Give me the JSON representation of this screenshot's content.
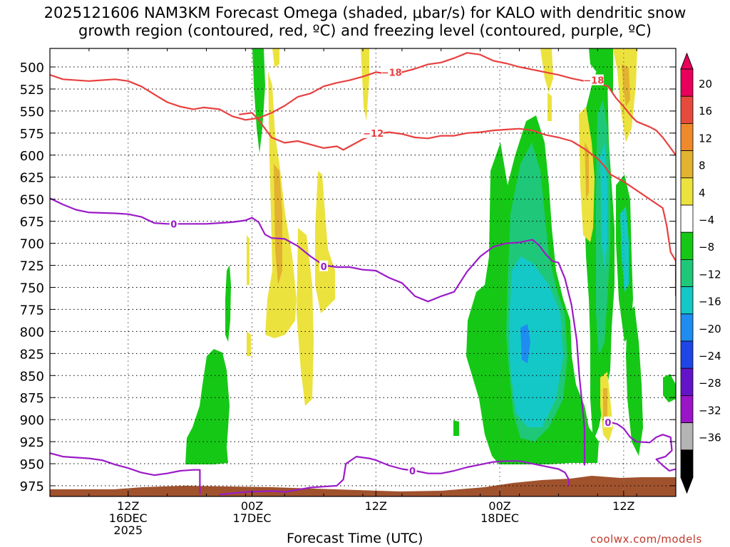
{
  "chart_data": {
    "type": "heatmap",
    "title_line1": "2025121606 NAM3KM Forecast Omega (shaded, μbar/s) for KALO with dendritic snow",
    "title_line2": "growth region (contoured, red, ºC) and freezing level (contoured, purple, ºC)",
    "xlabel": "Forecast Time (UTC)",
    "credit": "coolwx.com/models",
    "y_axis": {
      "pressure_hpa": [
        500,
        525,
        550,
        575,
        600,
        625,
        650,
        675,
        700,
        725,
        750,
        775,
        800,
        825,
        850,
        875,
        900,
        925,
        950,
        975
      ],
      "labels": [
        "500",
        "525",
        "550",
        "575",
        "600",
        "625",
        "650",
        "675",
        "700",
        "725",
        "750",
        "775",
        "800",
        "825",
        "850",
        "875",
        "900",
        "925",
        "950",
        "975"
      ],
      "range": [
        482,
        985
      ],
      "inverted": true
    },
    "x_axis": {
      "range_hours": [
        6,
        54
      ],
      "ticks": [
        {
          "hour": 12,
          "line1": "12Z",
          "line2": "16DEC",
          "line3": "2025"
        },
        {
          "hour": 21.5,
          "line1": "00Z",
          "line2": "17DEC",
          "line3": ""
        },
        {
          "hour": 31,
          "line1": "12Z",
          "line2": "",
          "line3": ""
        },
        {
          "hour": 40.5,
          "line1": "00Z",
          "line2": "18DEC",
          "line3": ""
        },
        {
          "hour": 50,
          "line1": "12Z",
          "line2": "",
          "line3": ""
        }
      ]
    },
    "colorbar": {
      "labels": [
        "20",
        "16",
        "12",
        "8",
        "4",
        "−4",
        "−8",
        "−12",
        "−16",
        "−20",
        "−24",
        "−28",
        "−32",
        "−36"
      ],
      "colors": [
        "#e8005a",
        "#e64a3c",
        "#ef8a2c",
        "#e2b230",
        "#ece23e",
        "#ffffff",
        "#16c816",
        "#1ec878",
        "#14c8c8",
        "#1e8cf0",
        "#1e46e6",
        "#6414c8",
        "#9a14c8",
        "#b4b4b4",
        "#000000"
      ]
    },
    "series": [
      {
        "name": "-18",
        "color": "#e84040",
        "points": [
          [
            6,
            509
          ],
          [
            7,
            514
          ],
          [
            9,
            516
          ],
          [
            11,
            514
          ],
          [
            12,
            516
          ],
          [
            13,
            522
          ],
          [
            14,
            531
          ],
          [
            15,
            540
          ],
          [
            16,
            545
          ],
          [
            17,
            548
          ],
          [
            17.8,
            546
          ],
          [
            19,
            548
          ],
          [
            20,
            556
          ],
          [
            21,
            560
          ],
          [
            22,
            558
          ],
          [
            23,
            552
          ],
          [
            24,
            544
          ],
          [
            25,
            534
          ],
          [
            26,
            530
          ],
          [
            27,
            522
          ],
          [
            28,
            518
          ],
          [
            29,
            515
          ],
          [
            30,
            511
          ],
          [
            31,
            506
          ],
          [
            32,
            508
          ],
          [
            33,
            506
          ],
          [
            34,
            502
          ],
          [
            35,
            497
          ],
          [
            36,
            495
          ],
          [
            37,
            490
          ],
          [
            38,
            484
          ],
          [
            39,
            486
          ],
          [
            40,
            493
          ],
          [
            41,
            496
          ],
          [
            42,
            500
          ],
          [
            43,
            503
          ],
          [
            44,
            506
          ],
          [
            45,
            509
          ],
          [
            46,
            513
          ],
          [
            47,
            516
          ],
          [
            48,
            519
          ],
          [
            48.8,
            522
          ],
          [
            49.4,
            535
          ],
          [
            50,
            545
          ],
          [
            50.6,
            556
          ],
          [
            51,
            562
          ],
          [
            52,
            568
          ],
          [
            52.5,
            572
          ],
          [
            53,
            580
          ],
          [
            53.5,
            590
          ],
          [
            54,
            600
          ]
        ],
        "labels": [
          {
            "x": 32.2,
            "y": 506,
            "text": "−18"
          },
          {
            "x": 47.7,
            "y": 515,
            "text": "−18"
          }
        ]
      },
      {
        "name": "-12",
        "color": "#e84040",
        "points": [
          [
            20.5,
            554
          ],
          [
            21.5,
            552
          ],
          [
            22,
            560
          ],
          [
            22.5,
            570
          ],
          [
            23,
            580
          ],
          [
            24,
            586
          ],
          [
            25,
            584
          ],
          [
            26,
            588
          ],
          [
            27,
            592
          ],
          [
            28,
            590
          ],
          [
            28.5,
            594
          ],
          [
            29,
            590
          ],
          [
            30,
            582
          ],
          [
            31,
            576
          ],
          [
            32,
            574
          ],
          [
            33,
            576
          ],
          [
            34,
            580
          ],
          [
            35,
            581
          ],
          [
            36,
            578
          ],
          [
            37,
            578
          ],
          [
            38,
            575
          ],
          [
            39,
            574
          ],
          [
            40,
            572
          ],
          [
            41,
            571
          ],
          [
            42,
            570
          ],
          [
            43,
            572
          ],
          [
            44,
            577
          ],
          [
            45,
            580
          ],
          [
            46,
            584
          ],
          [
            47,
            593
          ],
          [
            48,
            604
          ],
          [
            48.5,
            612
          ],
          [
            49,
            622
          ],
          [
            50,
            630
          ],
          [
            51,
            640
          ],
          [
            52,
            650
          ],
          [
            53,
            660
          ],
          [
            53.3,
            680
          ],
          [
            53.6,
            710
          ],
          [
            54,
            720
          ],
          [
            54,
            760
          ]
        ],
        "labels": [
          {
            "x": 30.8,
            "y": 575,
            "text": "−12"
          }
        ]
      },
      {
        "name": "0-upper",
        "color": "#9b1bc8",
        "points": [
          [
            6,
            649
          ],
          [
            7,
            656
          ],
          [
            8,
            662
          ],
          [
            9,
            665
          ],
          [
            11,
            666
          ],
          [
            12,
            667
          ],
          [
            13,
            670
          ],
          [
            14,
            677
          ],
          [
            15,
            678
          ],
          [
            17,
            678
          ],
          [
            18,
            678
          ],
          [
            19,
            677
          ],
          [
            20,
            676
          ],
          [
            21,
            674
          ],
          [
            21.5,
            671
          ],
          [
            22,
            676
          ],
          [
            22.5,
            690
          ],
          [
            23,
            694
          ],
          [
            24,
            695
          ],
          [
            25,
            703
          ],
          [
            26,
            715
          ],
          [
            27,
            725
          ],
          [
            28,
            727
          ],
          [
            29,
            727
          ],
          [
            30,
            730
          ],
          [
            31,
            731
          ],
          [
            32,
            739
          ],
          [
            33,
            745
          ],
          [
            34,
            760
          ],
          [
            35,
            766
          ],
          [
            36,
            760
          ],
          [
            37,
            755
          ],
          [
            38,
            732
          ],
          [
            39,
            715
          ],
          [
            40,
            704
          ],
          [
            41,
            700
          ],
          [
            42,
            699
          ],
          [
            43,
            696
          ],
          [
            43.5,
            702
          ],
          [
            44,
            712
          ],
          [
            44.5,
            720
          ],
          [
            45,
            722
          ],
          [
            45.5,
            740
          ],
          [
            46,
            770
          ],
          [
            46.4,
            810
          ],
          [
            46.6,
            850
          ],
          [
            46.8,
            880
          ],
          [
            47,
            910
          ],
          [
            47,
            952
          ]
        ],
        "labels": [
          {
            "x": 15.5,
            "y": 678,
            "text": "0"
          },
          {
            "x": 27,
            "y": 726,
            "text": "0"
          }
        ]
      },
      {
        "name": "0-lower",
        "color": "#9b1bc8",
        "points": [
          [
            6,
            938
          ],
          [
            7,
            942
          ],
          [
            9,
            944
          ],
          [
            10,
            946
          ],
          [
            11,
            951
          ],
          [
            12,
            955
          ],
          [
            13,
            960
          ],
          [
            14,
            963
          ],
          [
            15,
            961
          ],
          [
            16,
            958
          ],
          [
            17,
            957
          ],
          [
            17.5,
            957
          ],
          [
            17.5,
            985
          ]
        ],
        "labels": []
      },
      {
        "name": "0-lower-b",
        "color": "#9b1bc8",
        "points": [
          [
            19,
            985
          ],
          [
            21,
            982
          ],
          [
            23,
            981
          ],
          [
            24,
            982
          ],
          [
            26,
            977
          ],
          [
            27,
            976
          ],
          [
            28,
            975
          ],
          [
            28.5,
            968
          ],
          [
            28.7,
            950
          ],
          [
            29.5,
            942
          ],
          [
            30.5,
            944
          ],
          [
            31,
            946
          ],
          [
            32,
            952
          ],
          [
            33,
            956
          ],
          [
            34,
            958
          ],
          [
            35,
            961
          ],
          [
            36,
            961
          ],
          [
            37,
            958
          ],
          [
            38,
            954
          ],
          [
            39,
            951
          ],
          [
            40,
            948
          ],
          [
            41,
            947
          ],
          [
            42,
            947
          ],
          [
            43,
            950
          ],
          [
            44,
            953
          ],
          [
            45,
            956
          ],
          [
            45.5,
            960
          ],
          [
            45.8,
            968
          ],
          [
            45.8,
            975
          ]
        ],
        "labels": [
          {
            "x": 33.8,
            "y": 958,
            "text": "0"
          }
        ]
      },
      {
        "name": "0-right",
        "color": "#9b1bc8",
        "points": [
          [
            48.5,
            904
          ],
          [
            49,
            903
          ],
          [
            49.5,
            905
          ],
          [
            50,
            910
          ],
          [
            50.5,
            920
          ],
          [
            51,
            925
          ],
          [
            52,
            926
          ],
          [
            52.5,
            920
          ],
          [
            53,
            917
          ],
          [
            53.6,
            920
          ],
          [
            53.7,
            935
          ],
          [
            53.2,
            942
          ],
          [
            52.5,
            945
          ],
          [
            53,
            952
          ],
          [
            53.5,
            958
          ],
          [
            54,
            956
          ]
        ],
        "labels": [
          {
            "x": 48.8,
            "y": 903,
            "text": "0"
          }
        ]
      }
    ]
  }
}
